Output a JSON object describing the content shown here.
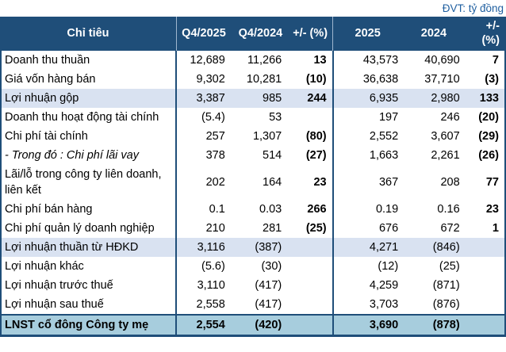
{
  "meta": {
    "unit_label": "ĐVT: tỷ đồng"
  },
  "table": {
    "columns": [
      "Chỉ tiêu",
      "Q4/2025",
      "Q4/2024",
      "+/- (%)",
      "2025",
      "2024",
      "+/- (%)"
    ],
    "rows": [
      {
        "label": "Doanh thu thuần",
        "values": [
          "12,689",
          "11,266",
          "13",
          "43,573",
          "40,690",
          "7"
        ]
      },
      {
        "label": "Giá vốn hàng bán",
        "values": [
          "9,302",
          "10,281",
          "(10)",
          "36,638",
          "37,710",
          "(3)"
        ]
      },
      {
        "label": "Lợi nhuận gộp",
        "highlight": true,
        "values": [
          "3,387",
          "985",
          "244",
          "6,935",
          "2,980",
          "133"
        ]
      },
      {
        "label": "Doanh thu hoạt động tài chính",
        "values": [
          "(5.4)",
          "53",
          "",
          "197",
          "246",
          "(20)"
        ]
      },
      {
        "label": "Chi phí tài chính",
        "values": [
          "257",
          "1,307",
          "(80)",
          "2,552",
          "3,607",
          "(29)"
        ]
      },
      {
        "label": "- Trong đó : Chi phí lãi vay",
        "italic": true,
        "values": [
          "378",
          "514",
          "(27)",
          "1,663",
          "2,261",
          "(26)"
        ]
      },
      {
        "label": "Lãi/lỗ trong công ty liên doanh, liên kết",
        "values": [
          "202",
          "164",
          "23",
          "367",
          "208",
          "77"
        ]
      },
      {
        "label": "Chi phí bán hàng",
        "values": [
          "0.1",
          "0.03",
          "266",
          "0.19",
          "0.16",
          "23"
        ]
      },
      {
        "label": "Chi phí quản lý doanh nghiệp",
        "values": [
          "210",
          "281",
          "(25)",
          "676",
          "672",
          "1"
        ]
      },
      {
        "label": "Lợi nhuận thuần từ HĐKD",
        "highlight": true,
        "values": [
          "3,116",
          "(387)",
          "",
          "4,271",
          "(846)",
          ""
        ]
      },
      {
        "label": "Lợi nhuận khác",
        "values": [
          "(5.6)",
          "(30)",
          "",
          "(12)",
          "(25)",
          ""
        ]
      },
      {
        "label": "Lợi nhuận trước thuế",
        "values": [
          "3,110",
          "(417)",
          "",
          "4,259",
          "(871)",
          ""
        ]
      },
      {
        "label": "Lợi nhuận sau thuế",
        "values": [
          "2,558",
          "(417)",
          "",
          "3,703",
          "(876)",
          ""
        ]
      },
      {
        "label": "LNST cổ đông Công ty mẹ",
        "total": true,
        "values": [
          "2,554",
          "(420)",
          "",
          "3,690",
          "(878)",
          ""
        ]
      }
    ]
  },
  "colors": {
    "header_bg": "#1F4E79",
    "highlight_bg": "#D9E2F1",
    "total_bg": "#A7CDDD",
    "positive": "#2E9678",
    "negative": "#FF0000",
    "unit_text": "#1F5FA0",
    "border": "#1F4E79"
  }
}
